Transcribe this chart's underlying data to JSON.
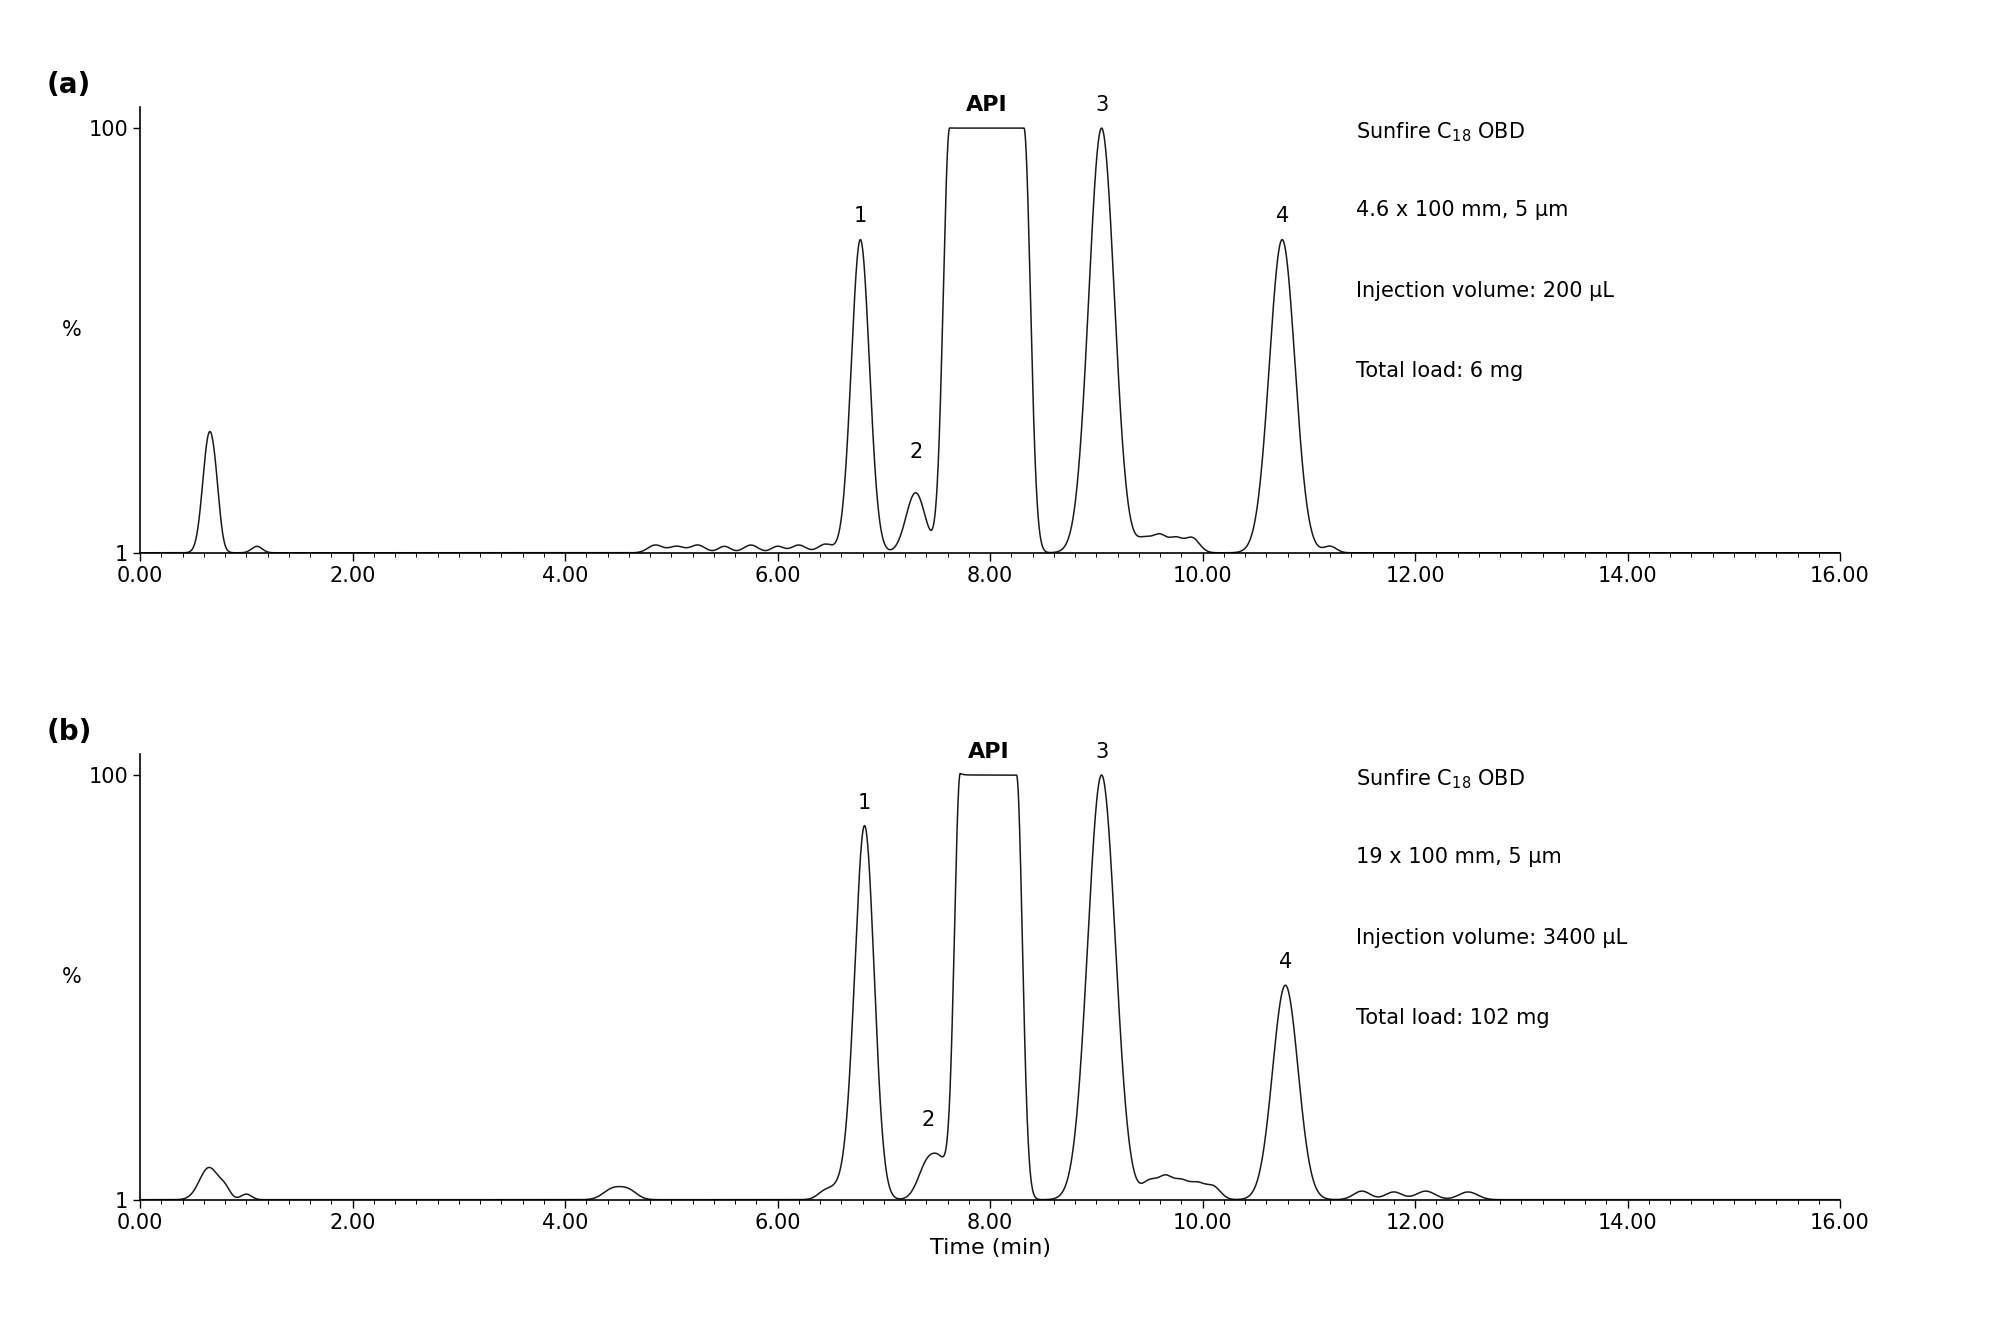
{
  "fig_width": 20.0,
  "fig_height": 13.33,
  "background_color": "#ffffff",
  "panel_a": {
    "label": "(a)",
    "ann1": "Sunfire C$_{18}$ OBD",
    "ann2": "4.6 x 100 mm, 5 μm",
    "ann3": "Injection volume: 200 μL",
    "ann4": "Total load: 6 mg"
  },
  "panel_b": {
    "label": "(b)",
    "ann1": "Sunfire C$_{18}$ OBD",
    "ann2": "19 x 100 mm, 5 μm",
    "ann3": "Injection volume: 3400 μL",
    "ann4": "Total load: 102 mg"
  },
  "xlim": [
    0.0,
    16.0
  ],
  "ylim_linear": [
    1,
    105
  ],
  "xticks": [
    0.0,
    2.0,
    4.0,
    6.0,
    8.0,
    10.0,
    12.0,
    14.0,
    16.0
  ],
  "xlabel": "Time (min)",
  "ylabel": "%",
  "line_color": "#1a1a1a",
  "text_color": "#1a1a1a",
  "font_size_ann": 15,
  "font_size_axis_tick": 15,
  "font_size_panel_label": 20,
  "font_size_peak_label": 15,
  "font_size_xlabel": 16
}
